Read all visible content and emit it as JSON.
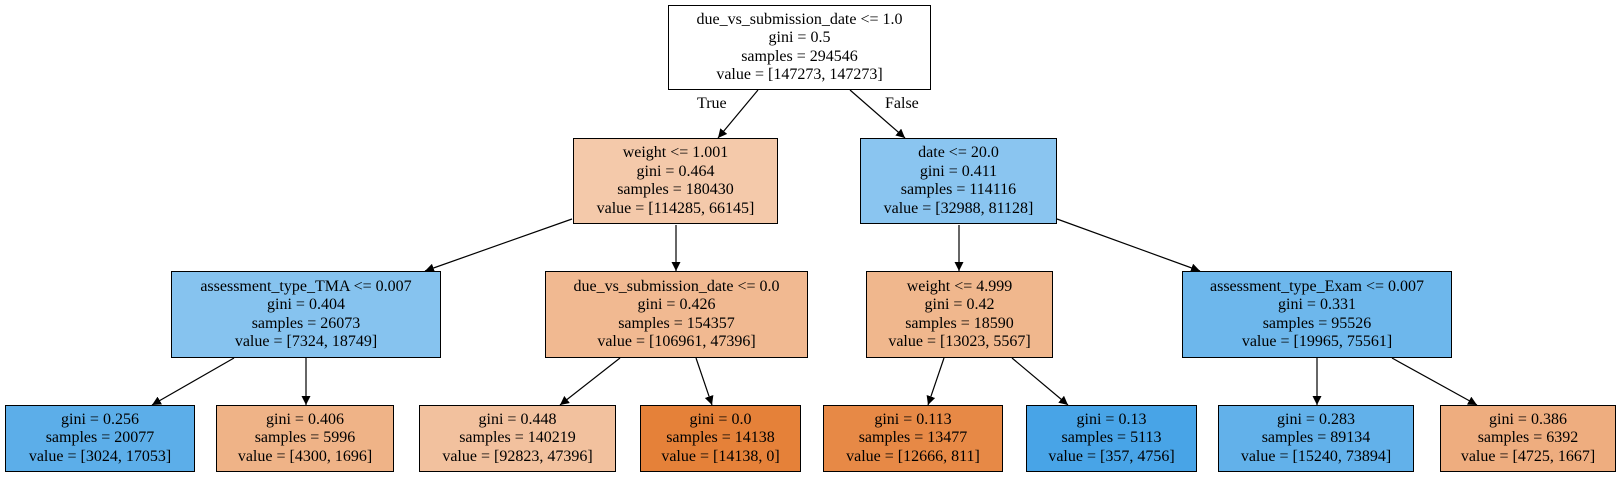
{
  "edge_labels": {
    "true_label": "True",
    "false_label": "False"
  },
  "nodes": [
    {
      "id": "n0",
      "lines": [
        "due_vs_submission_date <= 1.0",
        "gini = 0.5",
        "samples = 294546",
        "value = [147273, 147273]"
      ],
      "fill": "#ffffff"
    },
    {
      "id": "n1",
      "lines": [
        "weight <= 1.001",
        "gini = 0.464",
        "samples = 180430",
        "value = [114285, 66145]"
      ],
      "fill": "#f4c9aa"
    },
    {
      "id": "n2",
      "lines": [
        "date <= 20.0",
        "gini = 0.411",
        "samples = 114116",
        "value = [32988, 81128]"
      ],
      "fill": "#8ac5f0"
    },
    {
      "id": "n3",
      "lines": [
        "assessment_type_TMA <= 0.007",
        "gini = 0.404",
        "samples = 26073",
        "value = [7324, 18749]"
      ],
      "fill": "#86c3ef"
    },
    {
      "id": "n4",
      "lines": [
        "due_vs_submission_date <= 0.0",
        "gini = 0.426",
        "samples = 154357",
        "value = [106961, 47396]"
      ],
      "fill": "#f1b991"
    },
    {
      "id": "n5",
      "lines": [
        "weight <= 4.999",
        "gini = 0.42",
        "samples = 18590",
        "value = [13023, 5567]"
      ],
      "fill": "#f0b78d"
    },
    {
      "id": "n6",
      "lines": [
        "assessment_type_Exam <= 0.007",
        "gini = 0.331",
        "samples = 95526",
        "value = [19965, 75561]"
      ],
      "fill": "#6db7ec"
    },
    {
      "id": "n7",
      "lines": [
        "gini = 0.256",
        "samples = 20077",
        "value = [3024, 17053]"
      ],
      "fill": "#5caee9"
    },
    {
      "id": "n8",
      "lines": [
        "gini = 0.406",
        "samples = 5996",
        "value = [4300, 1696]"
      ],
      "fill": "#efb387"
    },
    {
      "id": "n9",
      "lines": [
        "gini = 0.448",
        "samples = 140219",
        "value = [92823, 47396]"
      ],
      "fill": "#f2c19e"
    },
    {
      "id": "n10",
      "lines": [
        "gini = 0.0",
        "samples = 14138",
        "value = [14138, 0]"
      ],
      "fill": "#e58139"
    },
    {
      "id": "n11",
      "lines": [
        "gini = 0.113",
        "samples = 13477",
        "value = [12666, 811]"
      ],
      "fill": "#e78946"
    },
    {
      "id": "n12",
      "lines": [
        "gini = 0.13",
        "samples = 5113",
        "value = [357, 4756]"
      ],
      "fill": "#48a4e7"
    },
    {
      "id": "n13",
      "lines": [
        "gini = 0.283",
        "samples = 89134",
        "value = [15240, 73894]"
      ],
      "fill": "#62b1ea"
    },
    {
      "id": "n14",
      "lines": [
        "gini = 0.386",
        "samples = 6392",
        "value = [4725, 1667]"
      ],
      "fill": "#eead7f"
    }
  ]
}
